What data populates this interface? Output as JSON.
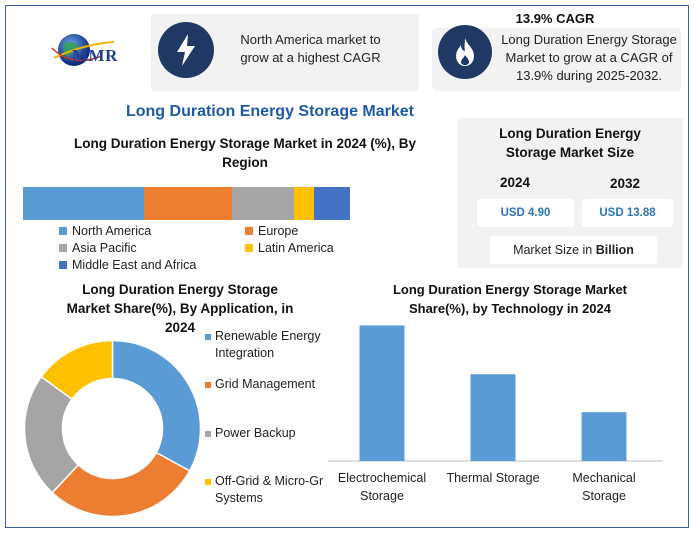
{
  "logo": {
    "text": "MMR"
  },
  "header": {
    "card_left_text": "North America market to grow at a highest CAGR",
    "card_right_title": "13.9% CAGR",
    "card_right_text": "Long Duration Energy Storage Market to grow at a CAGR of 13.9% during 2025-2032."
  },
  "icons": {
    "left": "lightning-icon",
    "right": "flame-icon"
  },
  "main_title": "Long Duration Energy Storage Market",
  "market_size": {
    "title": "Long Duration Energy Storage Market Size",
    "year_2024": "2024",
    "year_2032": "2032",
    "value_2024": "USD 4.90",
    "value_2032": "USD 13.88",
    "unit_prefix": "Market Size in ",
    "unit_bold": "Billion"
  },
  "colors": {
    "blue": "#5b9bd5",
    "orange": "#ed7d31",
    "gray": "#a5a5a5",
    "yellow": "#ffc000",
    "darkblue": "#4472c4",
    "navy": "#1f3864",
    "title_blue": "#1f5aa6"
  },
  "chart_data": [
    {
      "type": "bar",
      "orientation": "horizontal-stacked",
      "title": "Long Duration Energy Storage Market in 2024 (%), By Region",
      "series": [
        {
          "name": "North America",
          "value": 37
        },
        {
          "name": "Europe",
          "value": 27
        },
        {
          "name": "Asia Pacific",
          "value": 19
        },
        {
          "name": "Latin America",
          "value": 6
        },
        {
          "name": "Middle East and Africa",
          "value": 11
        }
      ]
    },
    {
      "type": "pie",
      "variant": "donut",
      "title": "Long Duration Energy Storage Market Share(%), By Application, in 2024",
      "series": [
        {
          "name": "Renewable Energy Integration",
          "label_lines": [
            "Renewable Energy",
            "Integration"
          ],
          "value": 33
        },
        {
          "name": "Grid Management",
          "label_lines": [
            "Grid Management"
          ],
          "value": 29
        },
        {
          "name": "Power Backup",
          "label_lines": [
            "Power Backup"
          ],
          "value": 23
        },
        {
          "name": "Off-Grid & Micro-Grid Systems",
          "label_lines": [
            "Off-Grid & Micro-Gr",
            "Systems"
          ],
          "value": 15
        }
      ]
    },
    {
      "type": "bar",
      "title": "Long Duration Energy Storage Market Share(%), by Technology in 2024",
      "categories": [
        "Electrochemical Storage",
        "Thermal Storage",
        "Mechanical Storage"
      ],
      "category_lines": [
        [
          "Electrochemical",
          "Storage"
        ],
        [
          "Thermal Storage"
        ],
        [
          "Mechanical",
          "Storage"
        ]
      ],
      "values": [
        50,
        32,
        18
      ],
      "ylim": [
        0,
        52
      ]
    }
  ]
}
